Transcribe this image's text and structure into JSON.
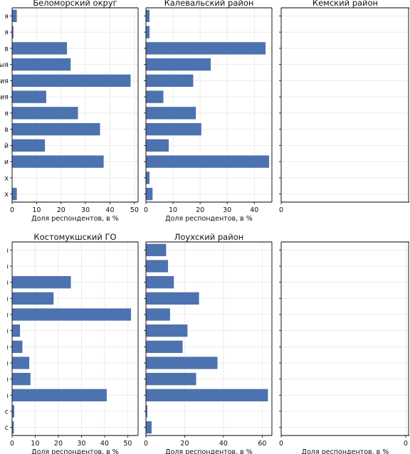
{
  "chart_data": [
    {
      "type": "bar",
      "orientation": "horizontal",
      "title": "Беломорский округ",
      "xlabel": "Доля респондентов, в %",
      "xlim": [
        0,
        51.5
      ],
      "xticks": [
        "0",
        "10",
        "20",
        "30",
        "40",
        "50"
      ],
      "category_labels": [
        "я",
        "я",
        "в",
        "ыя",
        "ия",
        "ия",
        "я",
        "в",
        "й",
        "и",
        "х",
        "х"
      ],
      "values": [
        2,
        0.6,
        22.5,
        24,
        48.5,
        14,
        27,
        36,
        13.5,
        37.5,
        0,
        2
      ]
    },
    {
      "type": "bar",
      "orientation": "horizontal",
      "title": "Калевальский район",
      "xlabel": "Доля респондентов, в %",
      "xlim": [
        0,
        46.5
      ],
      "xticks": [
        "0",
        "10",
        "20",
        "30",
        "40"
      ],
      "category_labels": [],
      "values": [
        1.4,
        1.4,
        44.2,
        24,
        17.5,
        6.5,
        18.5,
        20.5,
        8.5,
        45.5,
        1.4,
        2.5
      ]
    },
    {
      "type": "bar",
      "orientation": "horizontal",
      "title": "Кемский район",
      "xlabel": "",
      "xlim": [
        0,
        100
      ],
      "xticks": [
        "0"
      ],
      "category_labels": [],
      "values": [
        0.2,
        0.2,
        0.2,
        0.2,
        0.2,
        0.2,
        0.2,
        0.2,
        0.2,
        0.2,
        0.2,
        0.2
      ]
    },
    {
      "type": "bar",
      "orientation": "horizontal",
      "title": "Костомукшский ГО",
      "xlabel": "Доля респондентов, в %",
      "xlim": [
        0,
        54.5
      ],
      "xticks": [
        "0",
        "10",
        "20",
        "30",
        "40",
        "50"
      ],
      "category_labels": [
        "ı",
        "ı",
        "ı",
        "ı",
        "ı",
        "ı",
        "ı",
        "ı",
        "ı",
        "ı",
        "c",
        "c"
      ],
      "values": [
        0,
        0,
        25.5,
        18,
        51.5,
        3.5,
        4.5,
        7.5,
        8,
        41,
        1,
        0.8
      ]
    },
    {
      "type": "bar",
      "orientation": "horizontal",
      "title": "Лоухский район",
      "xlabel": "Доля респондентов, в %",
      "xlim": [
        0,
        65
      ],
      "xticks": [
        "0",
        "20",
        "40",
        "60"
      ],
      "category_labels": [],
      "values": [
        10.5,
        11.5,
        14.5,
        27.5,
        12.5,
        21.5,
        19,
        37,
        26,
        63,
        0.8,
        3
      ]
    },
    {
      "type": "bar",
      "orientation": "horizontal",
      "title": "",
      "xlabel": "Доля респондентов, в %",
      "xlim": [
        0,
        100
      ],
      "xticks": [
        "0",
        "0"
      ],
      "category_labels": [],
      "values": [
        0.2,
        0.2,
        0.2,
        0.2,
        0.2,
        0.2,
        0.2,
        0.2,
        0.2,
        0.2,
        0.2,
        0.2
      ]
    }
  ],
  "style": {
    "bar_color": "#4c72b0",
    "grid": true,
    "grid_color": "#e6e6e6"
  }
}
